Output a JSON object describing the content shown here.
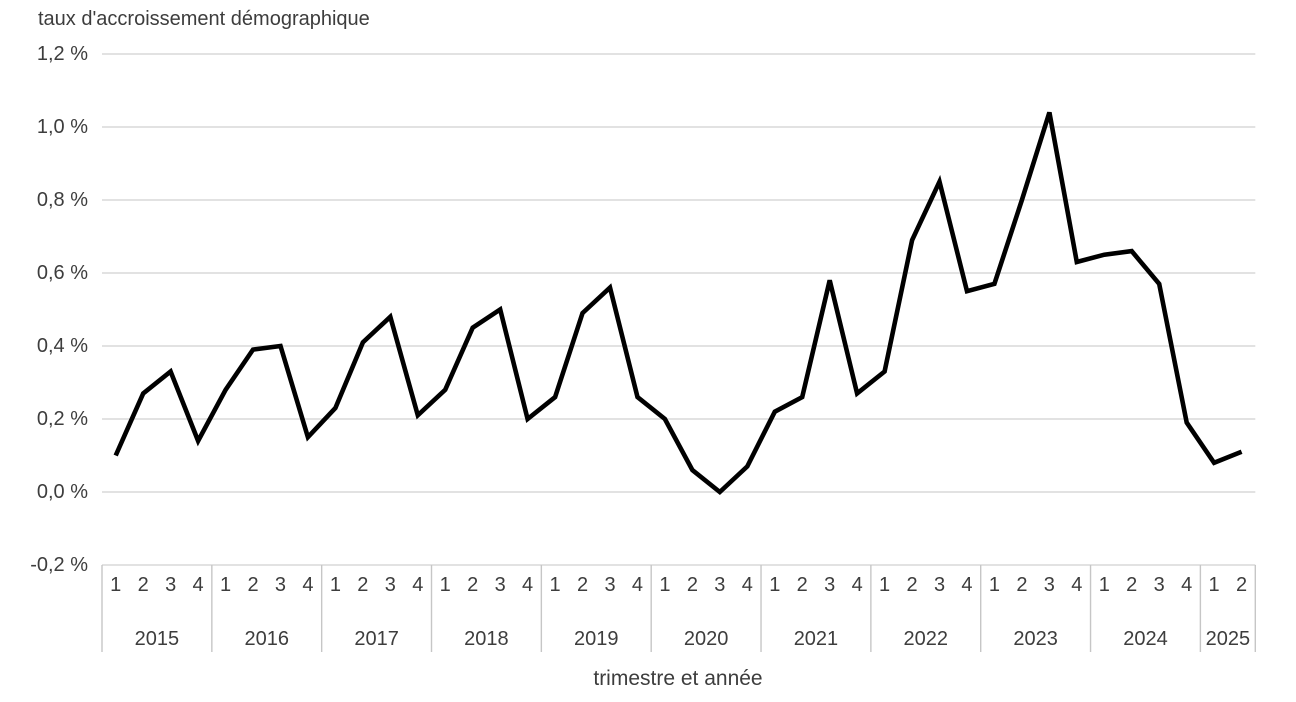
{
  "chart_data": {
    "type": "line",
    "title": "taux d'accroissement démographique",
    "xlabel": "trimestre et année",
    "ylabel": "",
    "unit": "%",
    "ylim": [
      -0.2,
      1.2
    ],
    "ytick_step": 0.2,
    "ytick_labels": [
      "1,2 %",
      "1,0 %",
      "0,8 %",
      "0,6 %",
      "0,4 %",
      "0,2 %",
      "0,0 %",
      "-0,2 %"
    ],
    "grid": true,
    "legend_position": "none",
    "line_color": "#000000",
    "gridline_color": "#d9d9d9",
    "axis_border_color": "#c6c6c6",
    "text_color": "#3d3d3d",
    "years": [
      {
        "year": "2015",
        "quarters": [
          "1",
          "2",
          "3",
          "4"
        ],
        "values": [
          0.1,
          0.27,
          0.33,
          0.14
        ]
      },
      {
        "year": "2016",
        "quarters": [
          "1",
          "2",
          "3",
          "4"
        ],
        "values": [
          0.28,
          0.39,
          0.4,
          0.15
        ]
      },
      {
        "year": "2017",
        "quarters": [
          "1",
          "2",
          "3",
          "4"
        ],
        "values": [
          0.23,
          0.41,
          0.48,
          0.21
        ]
      },
      {
        "year": "2018",
        "quarters": [
          "1",
          "2",
          "3",
          "4"
        ],
        "values": [
          0.28,
          0.45,
          0.5,
          0.2
        ]
      },
      {
        "year": "2019",
        "quarters": [
          "1",
          "2",
          "3",
          "4"
        ],
        "values": [
          0.26,
          0.49,
          0.56,
          0.26
        ]
      },
      {
        "year": "2020",
        "quarters": [
          "1",
          "2",
          "3",
          "4"
        ],
        "values": [
          0.2,
          0.06,
          0.0,
          0.07
        ]
      },
      {
        "year": "2021",
        "quarters": [
          "1",
          "2",
          "3",
          "4"
        ],
        "values": [
          0.22,
          0.26,
          0.58,
          0.27
        ]
      },
      {
        "year": "2022",
        "quarters": [
          "1",
          "2",
          "3",
          "4"
        ],
        "values": [
          0.33,
          0.69,
          0.85,
          0.55
        ]
      },
      {
        "year": "2023",
        "quarters": [
          "1",
          "2",
          "3",
          "4"
        ],
        "values": [
          0.57,
          0.8,
          1.04,
          0.63
        ]
      },
      {
        "year": "2024",
        "quarters": [
          "1",
          "2",
          "3",
          "4"
        ],
        "values": [
          0.65,
          0.66,
          0.57,
          0.19
        ]
      },
      {
        "year": "2025",
        "quarters": [
          "1",
          "2"
        ],
        "values": [
          0.08,
          0.11
        ]
      }
    ]
  }
}
